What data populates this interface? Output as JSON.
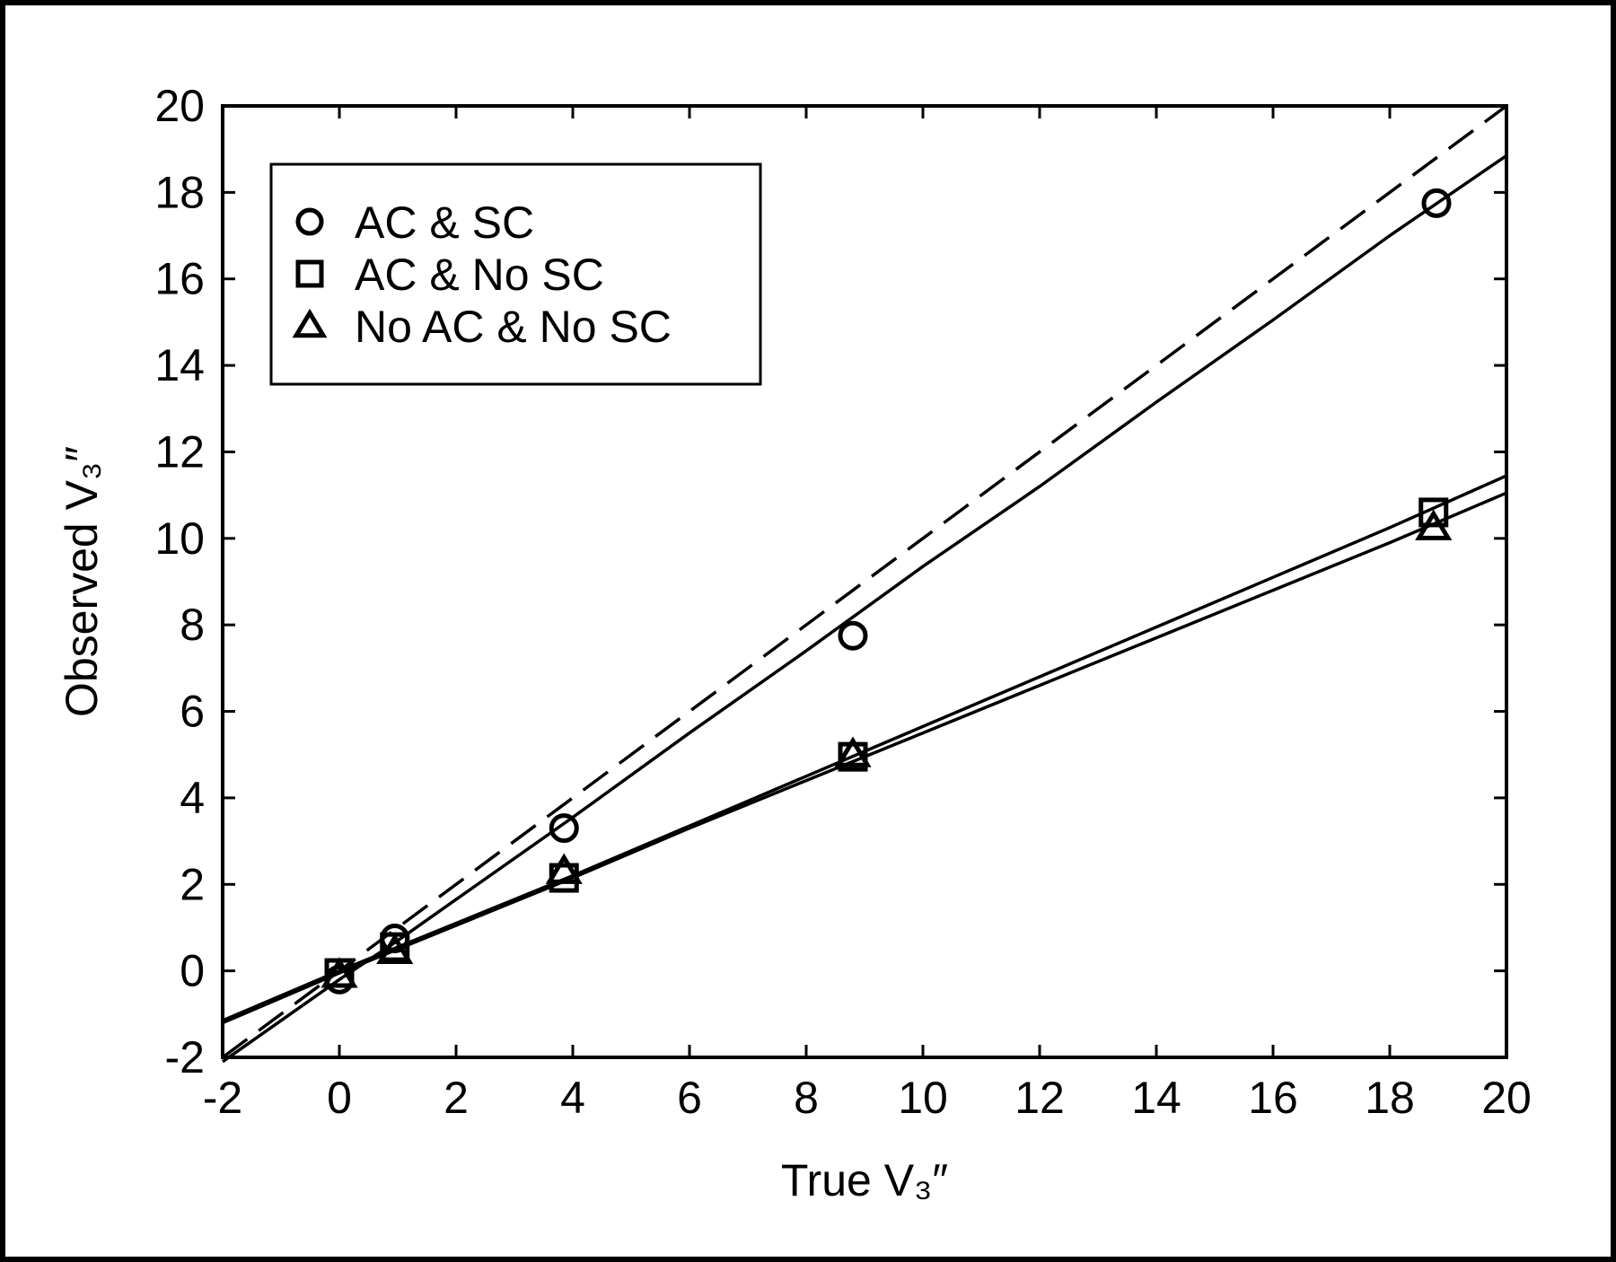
{
  "chart_data": {
    "type": "scatter",
    "xlabel": "True V₃″",
    "ylabel": "Observed V₃″",
    "xlim": [
      -2,
      20
    ],
    "ylim": [
      -2,
      20
    ],
    "xticks": [
      "-2",
      "0",
      "2",
      "4",
      "6",
      "8",
      "10",
      "12",
      "14",
      "16",
      "18",
      "20"
    ],
    "yticks": [
      "-2",
      "0",
      "2",
      "4",
      "6",
      "8",
      "10",
      "12",
      "14",
      "16",
      "18",
      "20"
    ],
    "grid": false,
    "legend_position": "top-left",
    "series": [
      {
        "name": "AC & SC",
        "marker": "circle",
        "points": [
          [
            0,
            -0.2
          ],
          [
            0.95,
            0.75
          ],
          [
            3.85,
            3.3
          ],
          [
            8.8,
            7.75
          ],
          [
            18.8,
            17.75
          ]
        ],
        "fit": [
          [
            -2,
            -2.1
          ],
          [
            0,
            -0.2
          ],
          [
            1,
            0.7
          ],
          [
            2,
            1.65
          ],
          [
            4,
            3.55
          ],
          [
            6,
            5.5
          ],
          [
            8,
            7.4
          ],
          [
            10,
            9.35
          ],
          [
            12,
            11.2
          ],
          [
            14,
            13.15
          ],
          [
            16,
            15.05
          ],
          [
            18,
            17.0
          ],
          [
            20,
            18.85
          ]
        ]
      },
      {
        "name": "AC & No SC",
        "marker": "square",
        "points": [
          [
            0,
            -0.05
          ],
          [
            0.95,
            0.55
          ],
          [
            3.85,
            2.15
          ],
          [
            8.8,
            4.95
          ],
          [
            18.75,
            10.6
          ]
        ],
        "fit": [
          [
            -2,
            -1.15
          ],
          [
            0,
            0.0
          ],
          [
            2,
            1.1
          ],
          [
            4,
            2.2
          ],
          [
            6,
            3.35
          ],
          [
            8,
            4.5
          ],
          [
            10,
            5.65
          ],
          [
            12,
            6.8
          ],
          [
            14,
            7.95
          ],
          [
            16,
            9.1
          ],
          [
            18,
            10.25
          ],
          [
            20,
            11.45
          ]
        ]
      },
      {
        "name": "No AC & No SC",
        "marker": "triangle",
        "points": [
          [
            0,
            -0.1
          ],
          [
            0.95,
            0.45
          ],
          [
            3.85,
            2.3
          ],
          [
            8.8,
            5.0
          ],
          [
            18.75,
            10.25
          ]
        ],
        "fit": [
          [
            -2,
            -1.2
          ],
          [
            0,
            -0.05
          ],
          [
            2,
            1.05
          ],
          [
            4,
            2.15
          ],
          [
            6,
            3.3
          ],
          [
            8,
            4.4
          ],
          [
            10,
            5.5
          ],
          [
            12,
            6.6
          ],
          [
            14,
            7.7
          ],
          [
            16,
            8.8
          ],
          [
            18,
            9.9
          ],
          [
            20,
            11.05
          ]
        ]
      }
    ],
    "reference_line": {
      "style": "dashed",
      "x": [
        -2,
        20
      ],
      "y": [
        -2,
        20
      ]
    }
  }
}
